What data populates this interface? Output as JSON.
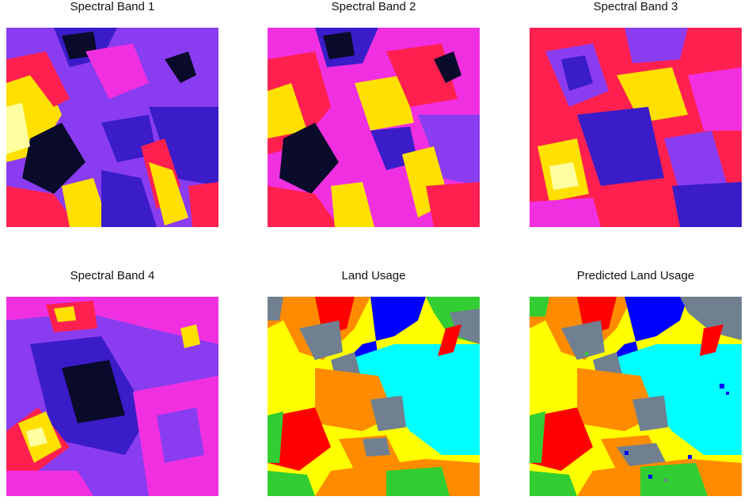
{
  "panels": [
    {
      "title": "Spectral Band 1",
      "type": "false-color"
    },
    {
      "title": "Spectral Band 2",
      "type": "false-color"
    },
    {
      "title": "Spectral Band 3",
      "type": "false-color"
    },
    {
      "title": "Spectral Band 4",
      "type": "false-color"
    },
    {
      "title": "Land Usage",
      "type": "classification"
    },
    {
      "title": "Predicted Land Usage",
      "type": "classification-predicted"
    }
  ],
  "colors": {
    "band_dark": "#0a0a2a",
    "band_blue": "#3a1cc8",
    "band_violet": "#8a3cf0",
    "band_magenta": "#f030e0",
    "band_red": "#ff2050",
    "band_yellow": "#ffe000",
    "band_white": "#ffffa0",
    "class_yellow": "#ffff00",
    "class_orange": "#ff8c00",
    "class_gray": "#708090",
    "class_red": "#ff0000",
    "class_blue": "#0000ff",
    "class_cyan": "#00ffff",
    "class_green": "#32cd32"
  }
}
